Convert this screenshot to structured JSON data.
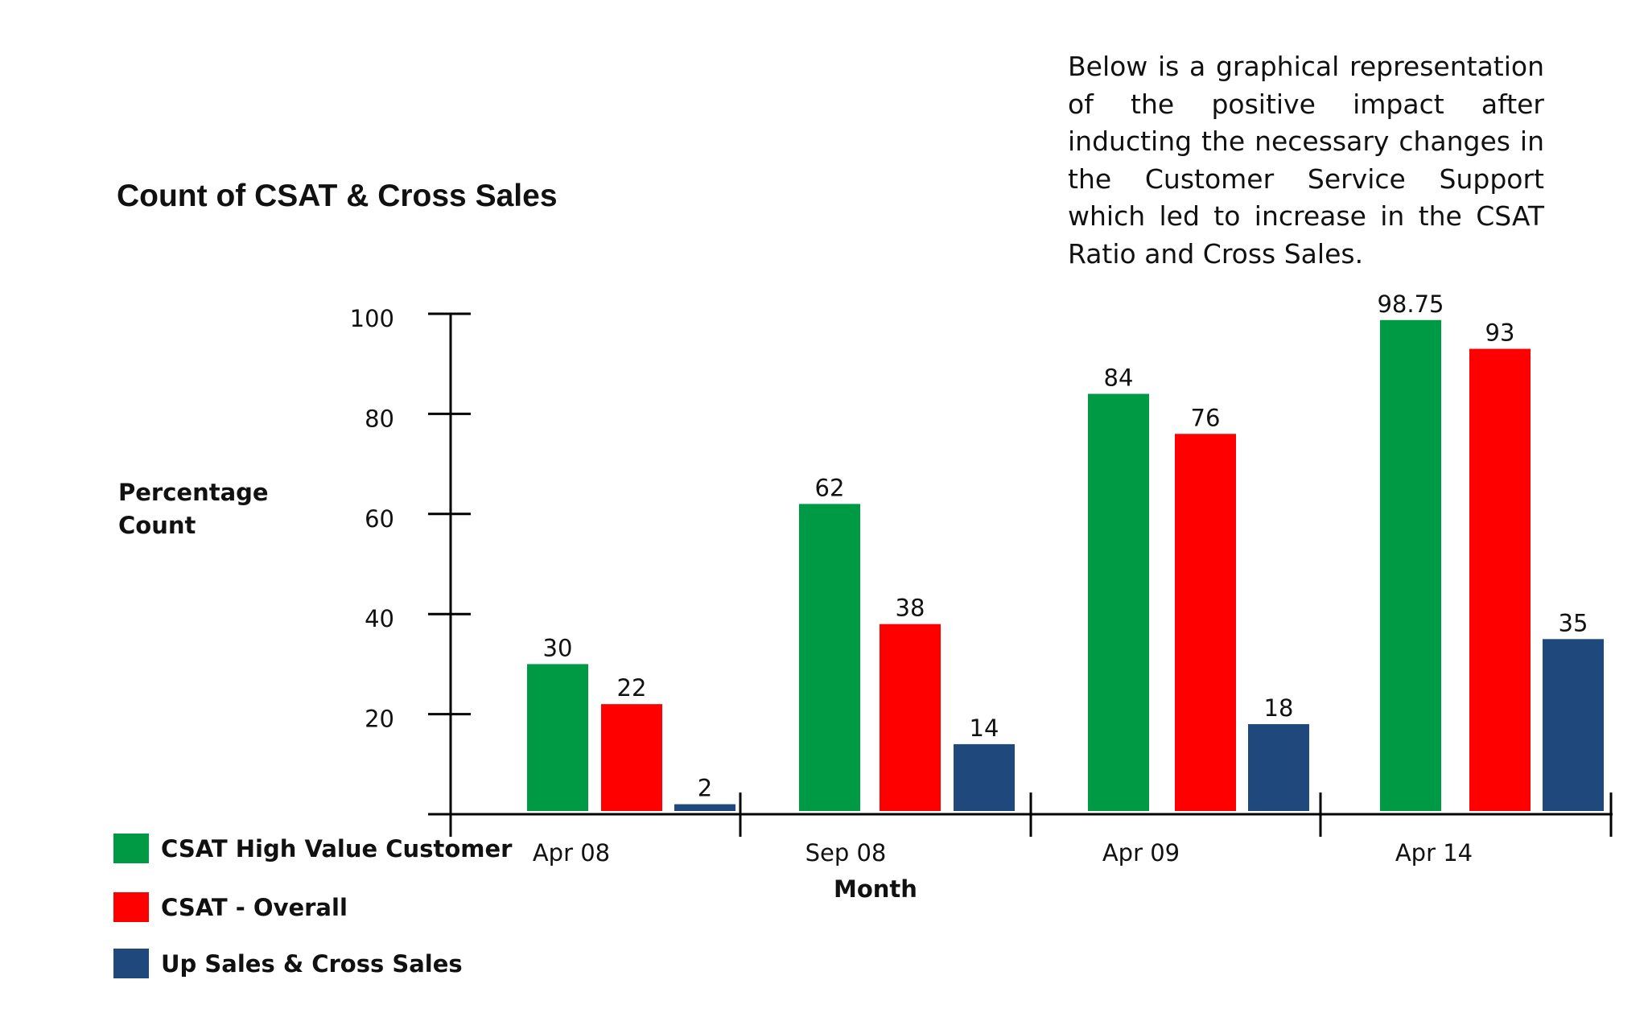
{
  "description": "Below is a graphical representation of the positive impact after inducting the necessary changes in the Customer Service Support which led to increase in the CSAT Ratio and Cross Sales.",
  "chart_data": {
    "type": "bar",
    "title": "Count of CSAT & Cross Sales",
    "xlabel": "Month",
    "ylabel": "Percentage Count",
    "categories": [
      "Apr 08",
      "Sep 08",
      "Apr 09",
      "Apr 14"
    ],
    "series": [
      {
        "name": "CSAT High Value  Customer",
        "color": "#009a44",
        "values": [
          30,
          62,
          84,
          98.75
        ]
      },
      {
        "name": "CSAT - Overall",
        "color": "#ff0000",
        "values": [
          22,
          38,
          76,
          93
        ]
      },
      {
        "name": "Up Sales & Cross Sales",
        "color": "#1f497d",
        "values": [
          2,
          14,
          18,
          35
        ]
      }
    ],
    "yticks": [
      20,
      40,
      60,
      80,
      100
    ],
    "ylim": [
      0,
      100
    ],
    "grid": false,
    "legend_position": "bottom-left"
  }
}
